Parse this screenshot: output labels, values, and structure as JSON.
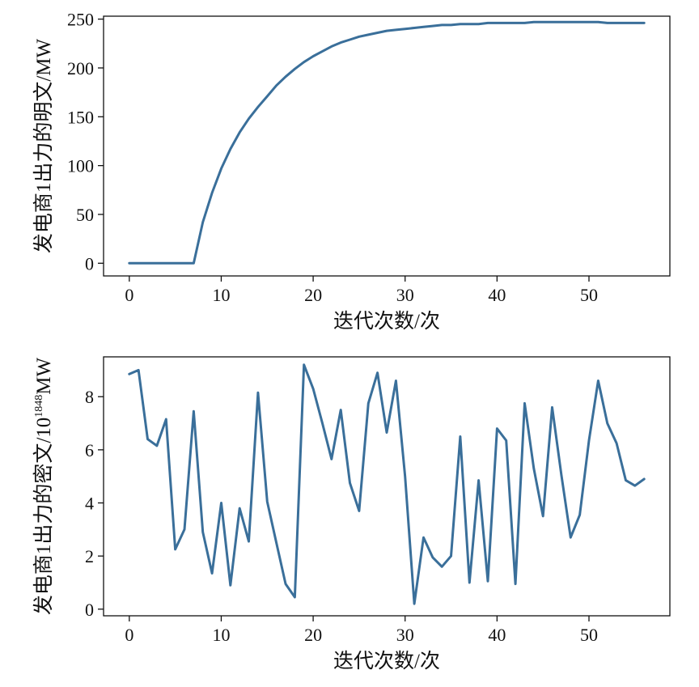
{
  "colors": {
    "series": "#3a6f9a"
  },
  "chart_data": [
    {
      "type": "line",
      "xlabel": "迭代次数/次",
      "ylabel": "发电商1出力的明文/MW",
      "xlim": [
        -2.8,
        58.8
      ],
      "ylim": [
        -13,
        253
      ],
      "xticks": [
        0,
        10,
        20,
        30,
        40,
        50
      ],
      "yticks": [
        0,
        50,
        100,
        150,
        200,
        250
      ],
      "x": [
        0,
        1,
        2,
        3,
        4,
        5,
        6,
        7,
        8,
        9,
        10,
        11,
        12,
        13,
        14,
        15,
        16,
        17,
        18,
        19,
        20,
        21,
        22,
        23,
        24,
        25,
        26,
        27,
        28,
        29,
        30,
        31,
        32,
        33,
        34,
        35,
        36,
        37,
        38,
        39,
        40,
        41,
        42,
        43,
        44,
        45,
        46,
        47,
        48,
        49,
        50,
        51,
        52,
        53,
        54,
        55,
        56
      ],
      "y": [
        0,
        0,
        0,
        0,
        0,
        0,
        0,
        0,
        42,
        72,
        97,
        117,
        134,
        148,
        160,
        171,
        182,
        191,
        199,
        206,
        212,
        217,
        222,
        226,
        229,
        232,
        234,
        236,
        238,
        239,
        240,
        241,
        242,
        243,
        244,
        244,
        245,
        245,
        245,
        246,
        246,
        246,
        246,
        246,
        247,
        247,
        247,
        247,
        247,
        247,
        247,
        247,
        246,
        246,
        246,
        246,
        246
      ]
    },
    {
      "type": "line",
      "xlabel": "迭代次数/次",
      "ylabel": "发电商1出力的密文/10",
      "ylabel_exp": "1848",
      "ylabel_unit": "MW",
      "xlim": [
        -2.8,
        58.8
      ],
      "ylim": [
        -0.25,
        9.5
      ],
      "xticks": [
        0,
        10,
        20,
        30,
        40,
        50
      ],
      "yticks": [
        0,
        2,
        4,
        6,
        8
      ],
      "x": [
        0,
        1,
        2,
        3,
        4,
        5,
        6,
        7,
        8,
        9,
        10,
        11,
        12,
        13,
        14,
        15,
        16,
        17,
        18,
        19,
        20,
        21,
        22,
        23,
        24,
        25,
        26,
        27,
        28,
        29,
        30,
        31,
        32,
        33,
        34,
        35,
        36,
        37,
        38,
        39,
        40,
        41,
        42,
        43,
        44,
        45,
        46,
        47,
        48,
        49,
        50,
        51,
        52,
        53,
        54,
        55,
        56
      ],
      "y": [
        8.85,
        9.0,
        6.4,
        6.15,
        7.15,
        2.25,
        3.0,
        7.45,
        2.9,
        1.35,
        4.0,
        0.9,
        3.8,
        2.55,
        8.15,
        4.05,
        2.5,
        0.95,
        0.45,
        9.2,
        8.3,
        7.0,
        5.65,
        7.5,
        4.75,
        3.7,
        7.75,
        8.9,
        6.65,
        8.6,
        5.0,
        0.2,
        2.7,
        1.95,
        1.6,
        2.0,
        6.5,
        1.0,
        4.85,
        1.05,
        6.8,
        6.35,
        0.95,
        7.75,
        5.3,
        3.5,
        7.6,
        5.05,
        2.7,
        3.55,
        6.35,
        8.6,
        7.0,
        6.25,
        4.85,
        4.65,
        4.9
      ]
    }
  ]
}
